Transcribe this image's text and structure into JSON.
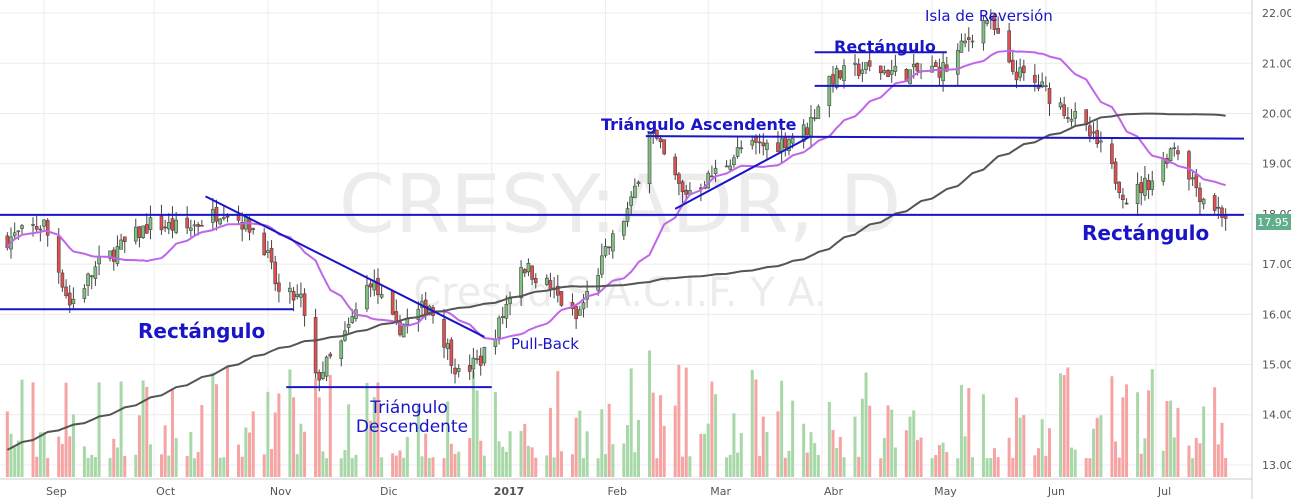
{
  "chart_data": {
    "type": "candlestick",
    "watermark": {
      "symbol": "CRESY:ADR, D",
      "company": "Cresud S.A.C.I.F. Y A."
    },
    "y_axis": {
      "ticks": [
        "13.00",
        "14.00",
        "15.00",
        "16.00",
        "17.00",
        "18.00",
        "19.00",
        "20.00",
        "21.00",
        "22.00"
      ],
      "range": [
        12.8,
        22.3
      ]
    },
    "x_axis": {
      "ticks": [
        "Sep",
        "Oct",
        "Nov",
        "Dic",
        "2017",
        "Feb",
        "Mar",
        "Abr",
        "May",
        "Jun",
        "Jul"
      ]
    },
    "last_price": "17.95",
    "colors": {
      "up": "#7ec27e",
      "down": "#e34f4f",
      "vol_up": "#a8d8a8",
      "vol_down": "#f5a3a3",
      "sma_short": "#c066e8",
      "sma_long": "#555555",
      "annotation": "#1a16c8",
      "grid": "#ececec",
      "price_tag": "#5fae8c"
    },
    "indicators": [
      {
        "name": "short moving average",
        "color": "#c066e8"
      },
      {
        "name": "long moving average",
        "color": "#555555"
      }
    ],
    "annotations": [
      {
        "id": "rect-1",
        "label": "Rectángulo",
        "style": "bold"
      },
      {
        "id": "triangulo-descendente",
        "label": [
          "Triángulo",
          "Descendente"
        ],
        "style": "normal"
      },
      {
        "id": "pull-back",
        "label": "Pull-Back",
        "style": "normal"
      },
      {
        "id": "triangulo-ascendente",
        "label": "Triángulo Ascendente",
        "style": "bold"
      },
      {
        "id": "rect-2",
        "label": "Rectángulo",
        "style": "bold"
      },
      {
        "id": "isla",
        "label": "Isla de Reversión",
        "style": "normal"
      },
      {
        "id": "rect-3",
        "label": "Rectángulo",
        "style": "bold"
      }
    ],
    "trendlines": [
      {
        "name": "support-17.95",
        "from": [
          "2016-08-20",
          17.98
        ],
        "to": [
          "2017-07-25",
          17.98
        ]
      },
      {
        "name": "rect1-bottom",
        "from": [
          "2016-08-20",
          16.1
        ],
        "to": [
          "2016-11-08",
          16.1
        ]
      },
      {
        "name": "desc-support",
        "from": [
          "2016-11-06",
          14.55
        ],
        "to": [
          "2017-01-01",
          14.55
        ]
      },
      {
        "name": "desc-resistance",
        "from": [
          "2016-10-15",
          18.35
        ],
        "to": [
          "2016-12-30",
          15.55
        ]
      },
      {
        "name": "asc-support",
        "from": [
          "2017-02-20",
          18.1
        ],
        "to": [
          "2017-03-29",
          19.55
        ]
      },
      {
        "name": "asc-resistance",
        "from": [
          "2017-02-12",
          19.55
        ],
        "to": [
          "2017-07-25",
          19.5
        ]
      },
      {
        "name": "rect2-top",
        "from": [
          "2017-03-30",
          21.22
        ],
        "to": [
          "2017-05-05",
          21.22
        ]
      },
      {
        "name": "rect2-bottom",
        "from": [
          "2017-03-30",
          20.55
        ],
        "to": [
          "2017-05-31",
          20.55
        ]
      }
    ],
    "ohlc_anchors": [
      {
        "date": "2016-08-22",
        "close": 17.5
      },
      {
        "date": "2016-09-01",
        "close": 17.8
      },
      {
        "date": "2016-09-08",
        "close": 16.2
      },
      {
        "date": "2016-09-16",
        "close": 17.0
      },
      {
        "date": "2016-09-30",
        "close": 17.8
      },
      {
        "date": "2016-10-10",
        "close": 17.7
      },
      {
        "date": "2016-10-20",
        "close": 18.1
      },
      {
        "date": "2016-10-30",
        "close": 17.6
      },
      {
        "date": "2016-11-04",
        "close": 16.4
      },
      {
        "date": "2016-11-10",
        "close": 16.3
      },
      {
        "date": "2016-11-14",
        "close": 14.7
      },
      {
        "date": "2016-11-21",
        "close": 15.4
      },
      {
        "date": "2016-11-29",
        "close": 16.7
      },
      {
        "date": "2016-12-06",
        "close": 15.7
      },
      {
        "date": "2016-12-15",
        "close": 16.2
      },
      {
        "date": "2016-12-23",
        "close": 14.8
      },
      {
        "date": "2016-12-29",
        "close": 15.1
      },
      {
        "date": "2017-01-03",
        "close": 15.8
      },
      {
        "date": "2017-01-09",
        "close": 17.0
      },
      {
        "date": "2017-01-16",
        "close": 16.6
      },
      {
        "date": "2017-01-24",
        "close": 15.9
      },
      {
        "date": "2017-02-01",
        "close": 17.2
      },
      {
        "date": "2017-02-08",
        "close": 18.2
      },
      {
        "date": "2017-02-13",
        "close": 19.7
      },
      {
        "date": "2017-02-22",
        "close": 18.4
      },
      {
        "date": "2017-03-01",
        "close": 18.7
      },
      {
        "date": "2017-03-10",
        "close": 19.3
      },
      {
        "date": "2017-03-20",
        "close": 19.4
      },
      {
        "date": "2017-03-28",
        "close": 19.7
      },
      {
        "date": "2017-04-03",
        "close": 20.7
      },
      {
        "date": "2017-04-12",
        "close": 20.9
      },
      {
        "date": "2017-04-24",
        "close": 20.8
      },
      {
        "date": "2017-05-05",
        "close": 20.9
      },
      {
        "date": "2017-05-12",
        "close": 21.6
      },
      {
        "date": "2017-05-16",
        "close": 21.9
      },
      {
        "date": "2017-05-19",
        "close": 21.5
      },
      {
        "date": "2017-05-22",
        "close": 20.9
      },
      {
        "date": "2017-05-31",
        "close": 20.5
      },
      {
        "date": "2017-06-09",
        "close": 19.9
      },
      {
        "date": "2017-06-16",
        "close": 19.3
      },
      {
        "date": "2017-06-23",
        "close": 18.3
      },
      {
        "date": "2017-06-30",
        "close": 18.7
      },
      {
        "date": "2017-07-06",
        "close": 19.4
      },
      {
        "date": "2017-07-13",
        "close": 18.4
      },
      {
        "date": "2017-07-20",
        "close": 17.95
      }
    ]
  }
}
